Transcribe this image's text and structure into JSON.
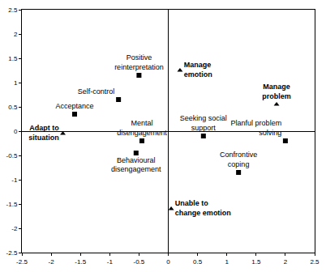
{
  "chart_data": {
    "type": "scatter",
    "xlim": [
      -2.5,
      2.5
    ],
    "ylim": [
      -2.5,
      2.5
    ],
    "xticks": [
      -2.5,
      -2,
      -1.5,
      -1,
      -0.5,
      0,
      0.5,
      1,
      1.5,
      2,
      2.5
    ],
    "yticks": [
      -2.5,
      -2,
      -1.5,
      -1,
      -0.5,
      0,
      0.5,
      1,
      1.5,
      2,
      2.5
    ],
    "grid": false,
    "series": [
      {
        "marker": "square",
        "color": "#000000",
        "labels": [
          "Positive\nreinterpretation",
          "Self-control",
          "Acceptance",
          "Mental\ndisengagement",
          "Behavioural\ndisengagement",
          "Seeking social\nsupport",
          "Planful problem\nsolving",
          "Confrontive\ncoping"
        ],
        "x": [
          -0.5,
          -0.85,
          -1.6,
          -0.45,
          -0.55,
          0.6,
          2.0,
          1.2
        ],
        "y": [
          1.15,
          0.65,
          0.35,
          -0.2,
          -0.45,
          -0.1,
          -0.2,
          -0.85
        ]
      },
      {
        "marker": "triangle-up",
        "color": "#000000",
        "labels": [
          "Adapt to\nsituation",
          "Manage\nemotion",
          "Manage\nproblem",
          "Unable to\nchange emotion"
        ],
        "x": [
          -1.8,
          0.2,
          1.85,
          0.05
        ],
        "y": [
          -0.05,
          1.25,
          0.55,
          -1.6
        ]
      }
    ]
  }
}
